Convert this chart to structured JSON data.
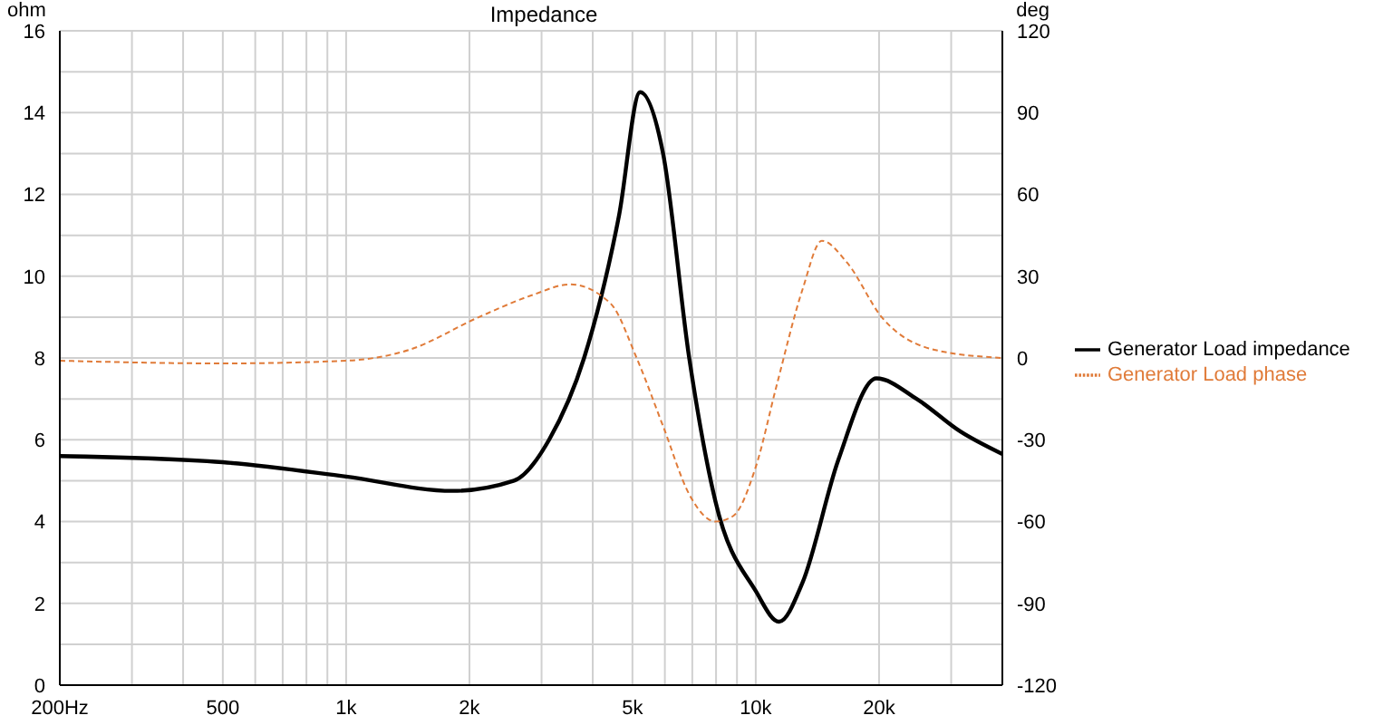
{
  "chart_data": {
    "type": "line",
    "title": "Impedance",
    "ylabel": "ohm",
    "y2label": "deg",
    "log": "x",
    "xlim": [
      200,
      40000
    ],
    "xticks": [
      {
        "value": 200,
        "label": "200Hz"
      },
      {
        "value": 300,
        "label": null
      },
      {
        "value": 400,
        "label": null
      },
      500,
      {
        "value": 600,
        "label": null
      },
      {
        "value": 700,
        "label": null
      },
      {
        "value": 800,
        "label": null
      },
      {
        "value": 900,
        "label": null
      },
      {
        "value": 1000,
        "label": "1k"
      },
      {
        "value": 2000,
        "label": "2k"
      },
      {
        "value": 3000,
        "label": null
      },
      {
        "value": 4000,
        "label": null
      },
      {
        "value": 5000,
        "label": "5k"
      },
      {
        "value": 6000,
        "label": null
      },
      {
        "value": 7000,
        "label": null
      },
      {
        "value": 8000,
        "label": null
      },
      {
        "value": 9000,
        "label": null
      },
      {
        "value": 10000,
        "label": "10k"
      },
      {
        "value": 20000,
        "label": "20k"
      },
      {
        "value": 30000,
        "label": null
      },
      {
        "value": 40000,
        "label": null
      }
    ],
    "ylim": [
      0,
      16
    ],
    "yticks": [
      0,
      {
        "value": 1,
        "label": null
      },
      2,
      {
        "value": 3,
        "label": null
      },
      4,
      {
        "value": 5,
        "label": null
      },
      6,
      {
        "value": 7,
        "label": null
      },
      8,
      {
        "value": 9,
        "label": null
      },
      10,
      {
        "value": 11,
        "label": null
      },
      12,
      {
        "value": 13,
        "label": null
      },
      14,
      {
        "value": 15,
        "label": null
      },
      16
    ],
    "y2lim": [
      -120,
      120
    ],
    "y2ticks": [
      -120,
      -90,
      -60,
      -30,
      0,
      30,
      60,
      90,
      120
    ],
    "grid": true,
    "legend": "right",
    "marker": "none",
    "series": [
      {
        "name": "Generator Load impedance",
        "color": "#000000",
        "line_style": "solid",
        "x": [
          200,
          500,
          1000,
          1820,
          2570,
          3130,
          3810,
          4640,
          5220,
          5940,
          6880,
          7970,
          10000,
          11400,
          13000,
          15900,
          19700,
          24700,
          31600,
          40000
        ],
        "values": [
          5.6,
          5.45,
          5.1,
          4.75,
          5.0,
          6.0,
          8.0,
          11.5,
          14.5,
          13.0,
          8.0,
          4.5,
          2.3,
          1.55,
          2.5,
          5.5,
          7.5,
          7.0,
          6.2,
          5.65
        ]
      },
      {
        "name": "Generator Load phase",
        "color": "#e07b39",
        "line_style": "dashed",
        "axis": "y2",
        "x": [
          200,
          500,
          1000,
          1425,
          2110,
          2840,
          3520,
          4420,
          5120,
          5940,
          6880,
          7970,
          8800,
          10000,
          11250,
          13000,
          14500,
          16700,
          20300,
          27300,
          40000
        ],
        "values": [
          -1,
          -2,
          -1,
          3,
          15,
          23,
          27,
          20,
          0,
          -25,
          -50,
          -60,
          -58,
          -40,
          -10,
          25,
          43,
          35,
          15,
          3,
          0
        ]
      }
    ]
  }
}
